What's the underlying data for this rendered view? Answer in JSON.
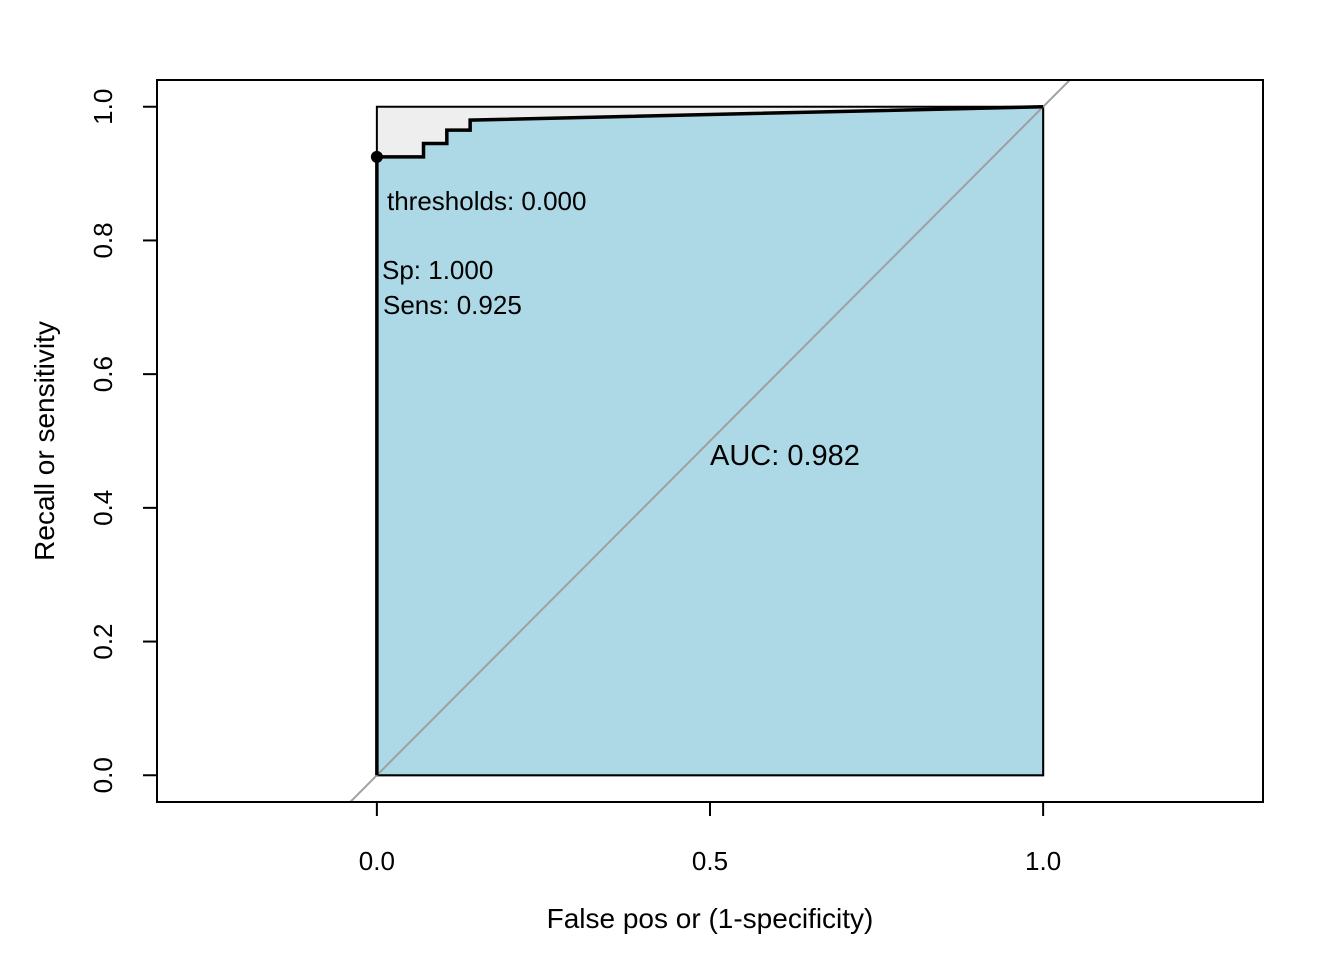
{
  "chart_data": {
    "type": "line",
    "title": "",
    "xlabel": "False pos or (1-specificity)",
    "ylabel": "Recall or sensitivity",
    "xlim": [
      -0.33,
      1.33
    ],
    "ylim": [
      -0.04,
      1.04
    ],
    "x_ticks": [
      0.0,
      0.5,
      1.0
    ],
    "x_tick_labels": [
      "0.0",
      "0.5",
      "1.0"
    ],
    "y_ticks": [
      0.0,
      0.2,
      0.4,
      0.6,
      0.8,
      1.0
    ],
    "y_tick_labels": [
      "0.0",
      "0.2",
      "0.4",
      "0.6",
      "0.8",
      "1.0"
    ],
    "grid": false,
    "series": [
      {
        "x": [
          0.0,
          0.0,
          0.07,
          0.07,
          0.105,
          0.105,
          0.14,
          0.14,
          1.0
        ],
        "y": [
          0.0,
          0.925,
          0.925,
          0.945,
          0.945,
          0.965,
          0.965,
          0.98,
          1.0
        ],
        "color": "#000000"
      }
    ],
    "auc_polygon_color": "#add8e6",
    "max_auc_region_color": "#eeeeee",
    "diagonal_color": "#a0a0a0",
    "threshold_point": {
      "x": 0.0,
      "y": 0.925
    },
    "annotations": {
      "threshold": "thresholds: 0.000",
      "specificity": "Sp: 1.000",
      "sensitivity": "Sens: 0.925",
      "auc": "AUC: 0.982"
    }
  }
}
